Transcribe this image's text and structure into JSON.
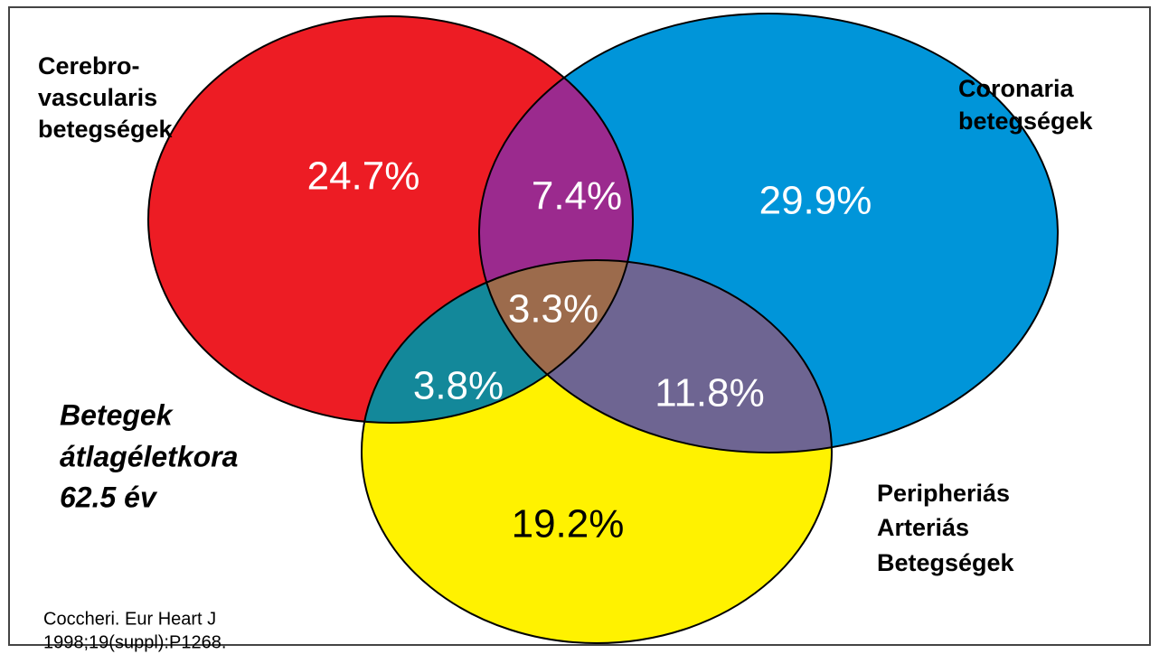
{
  "sets": [
    {
      "label": [
        "Cerebro-",
        "vascularis",
        "betegségek"
      ]
    },
    {
      "label": [
        "Coronaria",
        "betegségek"
      ]
    },
    {
      "label": [
        "Peripheriás",
        "Arteriás",
        "Betegségek"
      ]
    }
  ],
  "regions": {
    "cerebro_only": "24.7%",
    "cerebro_coronaria": "7.4%",
    "coronaria_only": "29.9%",
    "all_three": "3.3%",
    "cerebro_peripheral": "3.8%",
    "coronaria_peripheral": "11.8%",
    "peripheral_only": "19.2%"
  },
  "note": [
    "Betegek",
    "átlagéletkora",
    "62.5 év"
  ],
  "citation": [
    "Coccheri. Eur Heart J",
    "1998;19(suppl):P1268."
  ]
}
